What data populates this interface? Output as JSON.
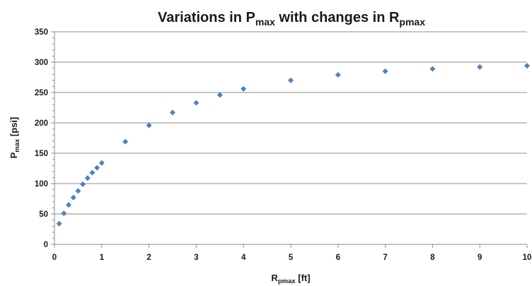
{
  "chart_data": {
    "type": "scatter",
    "title": {
      "main_prefix": "Variations in P",
      "main_prefix_sub": "max",
      "main_middle": " with changes in R",
      "main_middle_sub": "pmax"
    },
    "xlabel": {
      "base": "R",
      "sub": "pmax",
      "unit": " [ft]"
    },
    "ylabel": {
      "base": "P",
      "sub": "max",
      "unit": " [psi]"
    },
    "xlim": [
      0,
      10
    ],
    "ylim": [
      0,
      350
    ],
    "x_ticks": [
      "0",
      "1",
      "2",
      "3",
      "4",
      "5",
      "6",
      "7",
      "8",
      "9",
      "10"
    ],
    "y_ticks": [
      "0",
      "50",
      "100",
      "150",
      "200",
      "250",
      "300",
      "350"
    ],
    "grid": {
      "horizontal": true,
      "vertical": false
    },
    "legend": "none",
    "marker": "diamond",
    "color": "#4f81bd",
    "series": [
      {
        "points": [
          [
            0.1,
            34
          ],
          [
            0.2,
            51
          ],
          [
            0.3,
            65
          ],
          [
            0.4,
            77
          ],
          [
            0.5,
            88
          ],
          [
            0.6,
            99
          ],
          [
            0.7,
            109
          ],
          [
            0.8,
            118
          ],
          [
            0.9,
            126
          ],
          [
            1.0,
            134
          ],
          [
            1.5,
            169
          ],
          [
            2.0,
            196
          ],
          [
            2.5,
            217
          ],
          [
            3.0,
            233
          ],
          [
            3.5,
            246
          ],
          [
            4.0,
            256
          ],
          [
            5.0,
            270
          ],
          [
            6.0,
            279
          ],
          [
            7.0,
            285
          ],
          [
            8.0,
            289
          ],
          [
            9.0,
            292
          ],
          [
            10.0,
            294
          ]
        ]
      }
    ]
  }
}
